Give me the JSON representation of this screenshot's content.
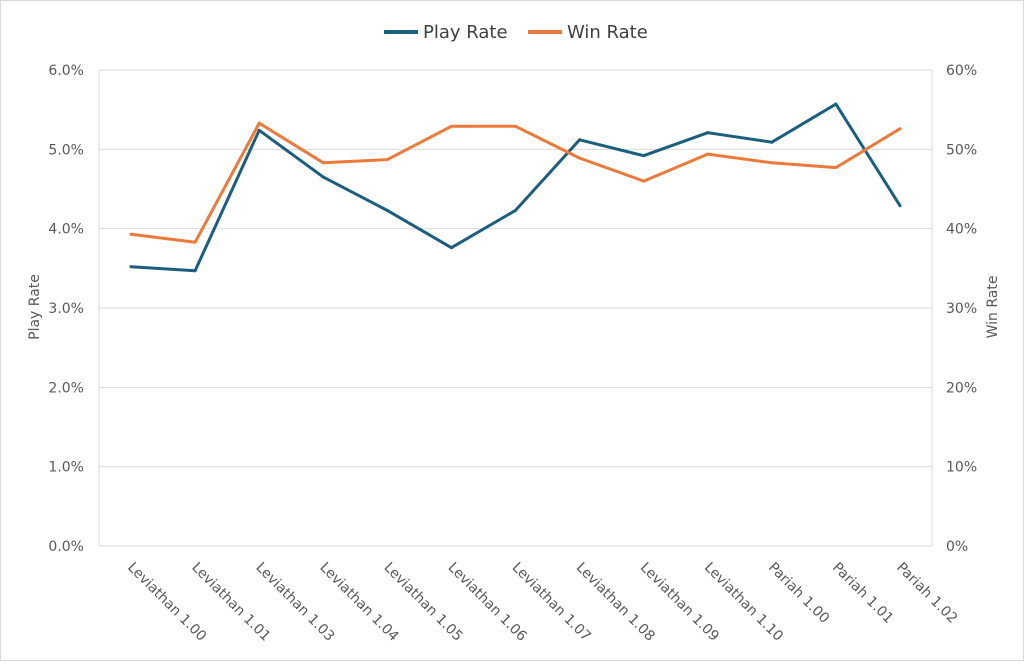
{
  "chart_data": {
    "type": "line",
    "categories": [
      "Leviathan 1.00",
      "Leviathan 1.01",
      "Leviathan 1.03",
      "Leviathan 1.04",
      "Leviathan 1.05",
      "Leviathan 1.06",
      "Leviathan 1.07",
      "Leviathan 1.08",
      "Leviathan 1.09",
      "Leviathan 1.10",
      "Pariah 1.00",
      "Pariah 1.01",
      "Pariah 1.02"
    ],
    "series": [
      {
        "name": "Play Rate",
        "axis": "left",
        "color": "#1b5e7f",
        "values": [
          3.52,
          3.47,
          5.24,
          4.65,
          4.23,
          3.76,
          4.23,
          5.12,
          4.92,
          5.21,
          5.09,
          5.57,
          4.29
        ]
      },
      {
        "name": "Win Rate",
        "axis": "right",
        "color": "#ed7a3a",
        "values": [
          39.3,
          38.3,
          53.3,
          48.3,
          48.7,
          52.9,
          52.9,
          48.9,
          46.0,
          49.4,
          48.3,
          47.7,
          52.6
        ]
      }
    ],
    "y_left": {
      "label": "Play Rate",
      "range": [
        0,
        6
      ],
      "ticks": [
        "0.0%",
        "1.0%",
        "2.0%",
        "3.0%",
        "4.0%",
        "5.0%",
        "6.0%"
      ]
    },
    "y_right": {
      "label": "Win Rate",
      "range": [
        0,
        60
      ],
      "ticks": [
        "0%",
        "10%",
        "20%",
        "30%",
        "40%",
        "50%",
        "60%"
      ]
    },
    "grid": true,
    "legend_position": "top-center",
    "title": "",
    "xlabel": ""
  }
}
